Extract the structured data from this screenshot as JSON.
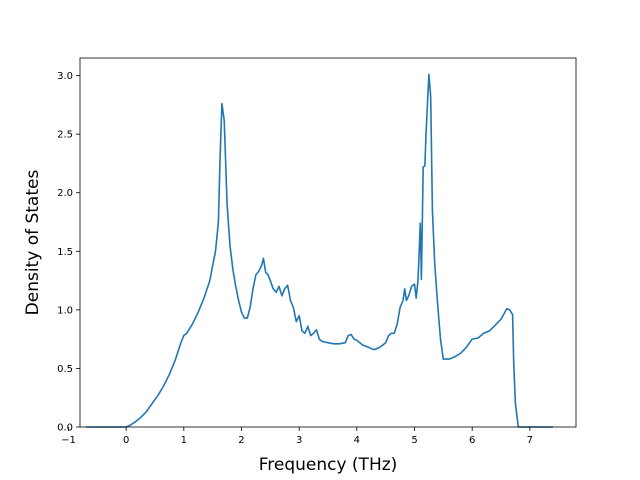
{
  "chart_data": {
    "type": "line",
    "title": "",
    "xlabel": "Frequency (THz)",
    "ylabel": "Density of States",
    "xlim": [
      -0.8,
      7.8
    ],
    "ylim": [
      0.0,
      3.15
    ],
    "xticks": [
      -1,
      0,
      1,
      2,
      3,
      4,
      5,
      6,
      7
    ],
    "xtick_labels": [
      "−1",
      "0",
      "1",
      "2",
      "3",
      "4",
      "5",
      "6",
      "7"
    ],
    "yticks": [
      0.0,
      0.5,
      1.0,
      1.5,
      2.0,
      2.5,
      3.0
    ],
    "ytick_labels": [
      "0.0",
      "0.5",
      "1.0",
      "1.5",
      "2.0",
      "2.5",
      "3.0"
    ],
    "grid": false,
    "legend": "none",
    "series": [
      {
        "color": "#1f77b4",
        "x": [
          -0.7,
          0.0,
          0.05,
          0.15,
          0.25,
          0.35,
          0.45,
          0.55,
          0.65,
          0.75,
          0.85,
          0.95,
          1.0,
          1.05,
          1.15,
          1.25,
          1.35,
          1.45,
          1.5,
          1.55,
          1.6,
          1.63,
          1.66,
          1.7,
          1.75,
          1.8,
          1.85,
          1.9,
          1.95,
          2.0,
          2.05,
          2.1,
          2.15,
          2.2,
          2.25,
          2.3,
          2.35,
          2.38,
          2.42,
          2.46,
          2.5,
          2.55,
          2.6,
          2.65,
          2.7,
          2.75,
          2.8,
          2.85,
          2.9,
          2.95,
          3.0,
          3.05,
          3.1,
          3.15,
          3.2,
          3.25,
          3.3,
          3.35,
          3.4,
          3.5,
          3.6,
          3.7,
          3.8,
          3.85,
          3.9,
          3.95,
          4.0,
          4.1,
          4.2,
          4.3,
          4.35,
          4.4,
          4.5,
          4.55,
          4.6,
          4.65,
          4.7,
          4.75,
          4.8,
          4.83,
          4.86,
          4.9,
          4.95,
          5.0,
          5.03,
          5.06,
          5.1,
          5.12,
          5.15,
          5.18,
          5.2,
          5.25,
          5.28,
          5.31,
          5.35,
          5.4,
          5.45,
          5.5,
          5.55,
          5.6,
          5.7,
          5.8,
          5.9,
          6.0,
          6.1,
          6.2,
          6.3,
          6.4,
          6.5,
          6.6,
          6.65,
          6.7,
          6.72,
          6.75,
          6.8,
          7.0,
          7.4
        ],
        "y": [
          0.0,
          0.0,
          0.01,
          0.04,
          0.08,
          0.13,
          0.2,
          0.27,
          0.35,
          0.45,
          0.57,
          0.72,
          0.78,
          0.8,
          0.88,
          0.98,
          1.1,
          1.25,
          1.38,
          1.5,
          1.75,
          2.3,
          2.76,
          2.62,
          1.9,
          1.55,
          1.35,
          1.2,
          1.08,
          0.98,
          0.93,
          0.93,
          1.02,
          1.18,
          1.3,
          1.33,
          1.38,
          1.44,
          1.32,
          1.3,
          1.25,
          1.18,
          1.15,
          1.2,
          1.12,
          1.18,
          1.21,
          1.08,
          1.02,
          0.9,
          0.95,
          0.82,
          0.8,
          0.86,
          0.78,
          0.8,
          0.83,
          0.75,
          0.73,
          0.72,
          0.71,
          0.71,
          0.72,
          0.78,
          0.79,
          0.75,
          0.74,
          0.7,
          0.68,
          0.66,
          0.67,
          0.68,
          0.72,
          0.78,
          0.8,
          0.8,
          0.88,
          1.02,
          1.08,
          1.18,
          1.08,
          1.12,
          1.2,
          1.22,
          1.1,
          1.25,
          1.74,
          1.26,
          2.22,
          2.23,
          2.5,
          3.01,
          2.82,
          1.85,
          1.4,
          1.05,
          0.75,
          0.58,
          0.58,
          0.58,
          0.6,
          0.63,
          0.68,
          0.75,
          0.76,
          0.8,
          0.82,
          0.87,
          0.92,
          1.01,
          1.0,
          0.96,
          0.55,
          0.2,
          0.0,
          0.0,
          0.0
        ]
      }
    ]
  }
}
